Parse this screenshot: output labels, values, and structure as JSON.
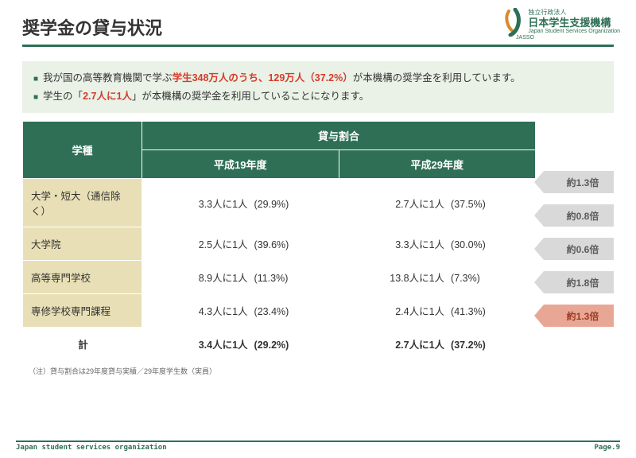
{
  "header": {
    "title": "奨学金の貸与状況",
    "org_line1": "独立行政法人",
    "org_line2": "日本学生支援機構",
    "org_line3": "Japan Student Services Organization",
    "org_jasso": "JASSO"
  },
  "bullets": {
    "b1_pre": "我が国の高等教育機関で学ぶ",
    "b1_red": "学生348万人のうち、129万人（37.2%）",
    "b1_post": "が本機構の奨学金を利用しています。",
    "b2_pre": "学生の「",
    "b2_red": "2.7人に1人",
    "b2_post": "」が本機構の奨学金を利用していることになります。"
  },
  "table": {
    "head_type": "学種",
    "head_group": "貸与割合",
    "head_h19": "平成19年度",
    "head_h29": "平成29年度",
    "rows": [
      {
        "type": "大学・短大（通信除く）",
        "h19_r": "3.3人に1人",
        "h19_p": "(29.9%)",
        "h29_r": "2.7人に1人",
        "h29_p": "(37.5%)",
        "arrow": "約1.3倍",
        "hl": false
      },
      {
        "type": "大学院",
        "h19_r": "2.5人に1人",
        "h19_p": "(39.6%)",
        "h29_r": "3.3人に1人",
        "h29_p": "(30.0%)",
        "arrow": "約0.8倍",
        "hl": false
      },
      {
        "type": "高等専門学校",
        "h19_r": "8.9人に1人",
        "h19_p": "(11.3%)",
        "h29_r": "13.8人に1人",
        "h29_p": "(7.3%)",
        "arrow": "約0.6倍",
        "hl": false
      },
      {
        "type": "専修学校専門課程",
        "h19_r": "4.3人に1人",
        "h19_p": "(23.4%)",
        "h29_r": "2.4人に1人",
        "h29_p": "(41.3%)",
        "arrow": "約1.8倍",
        "hl": false
      },
      {
        "type": "計",
        "h19_r": "3.4人に1人",
        "h19_p": "(29.2%)",
        "h29_r": "2.7人に1人",
        "h29_p": "(37.2%)",
        "arrow": "約1.3倍",
        "hl": true,
        "total": true
      }
    ]
  },
  "note": "（注）貸与割合は29年度貸与実績／29年度学生数（実員）",
  "footer": {
    "org": "Japan student services organization",
    "page": "Page.9"
  }
}
